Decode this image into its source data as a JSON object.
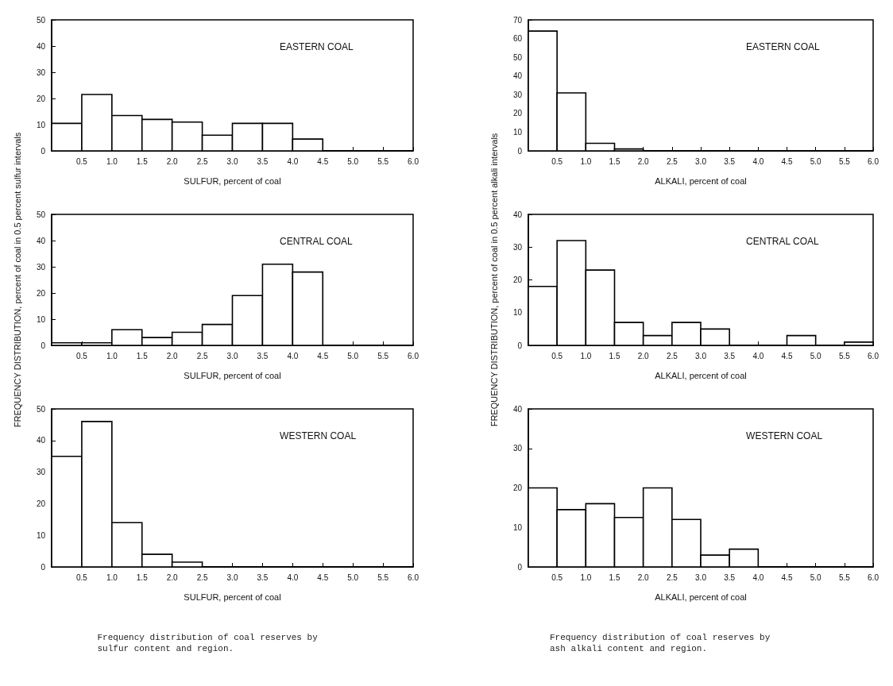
{
  "chart_data": [
    {
      "type": "histogram",
      "title": "EASTERN COAL",
      "xlabel": "SULFUR, percent of coal",
      "bins": [
        0,
        0.5,
        1,
        1.5,
        2,
        2.5,
        3,
        3.5,
        4,
        4.5,
        5,
        5.5,
        6
      ],
      "values": [
        10.5,
        21.5,
        13.5,
        12,
        11,
        6,
        10.5,
        10.5,
        4.5,
        0,
        0,
        0
      ],
      "color": "#000000",
      "xlim": [
        0,
        6
      ],
      "xticks": [
        {
          "value": 0,
          "label": null
        },
        {
          "value": 0.5,
          "label": "0.5"
        },
        {
          "value": 1,
          "label": "1.0"
        },
        {
          "value": 1.5,
          "label": "1.5"
        },
        {
          "value": 2,
          "label": "2.0"
        },
        {
          "value": 2.5,
          "label": "2.5"
        },
        {
          "value": 3,
          "label": "3.0"
        },
        {
          "value": 3.5,
          "label": "3.5"
        },
        {
          "value": 4,
          "label": "4.0"
        },
        {
          "value": 4.5,
          "label": "4.5"
        },
        {
          "value": 5,
          "label": "5.0"
        },
        {
          "value": 5.5,
          "label": "5.5"
        },
        {
          "value": 6,
          "label": "6.0"
        }
      ],
      "ylim": [
        0,
        50
      ],
      "yticks": [
        0,
        10,
        20,
        30,
        40,
        50
      ]
    },
    {
      "type": "histogram",
      "title": "CENTRAL COAL",
      "xlabel": "SULFUR, percent of coal",
      "ylabel": "FREQUENCY DISTRIBUTION, percent of coal in 0.5 percent sulfur intervals",
      "bins": [
        0,
        0.5,
        1,
        1.5,
        2,
        2.5,
        3,
        3.5,
        4,
        4.5,
        5,
        5.5,
        6
      ],
      "values": [
        1,
        1,
        6,
        3,
        5,
        8,
        19,
        31,
        28,
        0,
        0,
        0
      ],
      "color": "#000000",
      "xlim": [
        0,
        6
      ],
      "xticks": [
        {
          "value": 0,
          "label": null
        },
        {
          "value": 0.5,
          "label": "0.5"
        },
        {
          "value": 1,
          "label": "1.0"
        },
        {
          "value": 1.5,
          "label": "1.5"
        },
        {
          "value": 2,
          "label": "2.0"
        },
        {
          "value": 2.5,
          "label": "2.5"
        },
        {
          "value": 3,
          "label": "3.0"
        },
        {
          "value": 3.5,
          "label": "3.5"
        },
        {
          "value": 4,
          "label": "4.0"
        },
        {
          "value": 4.5,
          "label": "4.5"
        },
        {
          "value": 5,
          "label": "5.0"
        },
        {
          "value": 5.5,
          "label": "5.5"
        },
        {
          "value": 6,
          "label": "6.0"
        }
      ],
      "ylim": [
        0,
        50
      ],
      "yticks": [
        0,
        10,
        20,
        30,
        40,
        50
      ]
    },
    {
      "type": "histogram",
      "title": "WESTERN COAL",
      "xlabel": "SULFUR, percent of coal",
      "bins": [
        0,
        0.5,
        1,
        1.5,
        2,
        2.5,
        3,
        3.5,
        4,
        4.5,
        5,
        5.5,
        6
      ],
      "values": [
        35,
        46,
        14,
        4,
        1.5,
        0,
        0,
        0,
        0,
        0,
        0,
        0
      ],
      "color": "#000000",
      "xlim": [
        0,
        6
      ],
      "xticks": [
        {
          "value": 0,
          "label": null
        },
        {
          "value": 0.5,
          "label": "0.5"
        },
        {
          "value": 1,
          "label": "1.0"
        },
        {
          "value": 1.5,
          "label": "1.5"
        },
        {
          "value": 2,
          "label": "2.0"
        },
        {
          "value": 2.5,
          "label": "2.5"
        },
        {
          "value": 3,
          "label": "3.0"
        },
        {
          "value": 3.5,
          "label": "3.5"
        },
        {
          "value": 4,
          "label": "4.0"
        },
        {
          "value": 4.5,
          "label": "4.5"
        },
        {
          "value": 5,
          "label": "5.0"
        },
        {
          "value": 5.5,
          "label": "5.5"
        },
        {
          "value": 6,
          "label": "6.0"
        }
      ],
      "ylim": [
        0,
        50
      ],
      "yticks": [
        0,
        10,
        20,
        30,
        40,
        50
      ],
      "annotations": [
        "Frequency distribution of coal reserves by sulfur content and region."
      ]
    },
    {
      "type": "histogram",
      "title": "EASTERN COAL",
      "xlabel": "ALKALI, percent of coal",
      "bins": [
        0,
        0.5,
        1,
        1.5,
        2,
        2.5,
        3,
        3.5,
        4,
        4.5,
        5,
        5.5,
        6
      ],
      "values": [
        64,
        31,
        4,
        1,
        0,
        0,
        0,
        0,
        0,
        0,
        0,
        0
      ],
      "color": "#000000",
      "xlim": [
        0,
        6
      ],
      "xticks": [
        {
          "value": 0,
          "label": null
        },
        {
          "value": 0.5,
          "label": "0.5"
        },
        {
          "value": 1,
          "label": "1.0"
        },
        {
          "value": 1.5,
          "label": "1.5"
        },
        {
          "value": 2,
          "label": "2.0"
        },
        {
          "value": 2.5,
          "label": "2.5"
        },
        {
          "value": 3,
          "label": "3.0"
        },
        {
          "value": 3.5,
          "label": "3.5"
        },
        {
          "value": 4,
          "label": "4.0"
        },
        {
          "value": 4.5,
          "label": "4.5"
        },
        {
          "value": 5,
          "label": "5.0"
        },
        {
          "value": 5.5,
          "label": "5.5"
        },
        {
          "value": 6,
          "label": "6.0"
        }
      ],
      "ylim": [
        0,
        70
      ],
      "yticks": [
        0,
        10,
        20,
        30,
        40,
        50,
        60,
        70
      ]
    },
    {
      "type": "histogram",
      "title": "CENTRAL COAL",
      "xlabel": "ALKALI, percent of coal",
      "ylabel": "FREQUENCY DISTRIBUTION, percent of coal in 0.5 percent alkali intervals",
      "bins": [
        0,
        0.5,
        1,
        1.5,
        2,
        2.5,
        3,
        3.5,
        4,
        4.5,
        5,
        5.5,
        6
      ],
      "values": [
        18,
        32,
        23,
        7,
        3,
        7,
        5,
        0,
        0,
        3,
        0,
        1
      ],
      "color": "#000000",
      "xlim": [
        0,
        6
      ],
      "xticks": [
        {
          "value": 0,
          "label": null
        },
        {
          "value": 0.5,
          "label": "0.5"
        },
        {
          "value": 1,
          "label": "1.0"
        },
        {
          "value": 1.5,
          "label": "1.5"
        },
        {
          "value": 2,
          "label": "2.0"
        },
        {
          "value": 2.5,
          "label": "2.5"
        },
        {
          "value": 3,
          "label": "3.0"
        },
        {
          "value": 3.5,
          "label": "3.5"
        },
        {
          "value": 4,
          "label": "4.0"
        },
        {
          "value": 4.5,
          "label": "4.5"
        },
        {
          "value": 5,
          "label": "5.0"
        },
        {
          "value": 5.5,
          "label": "5.5"
        },
        {
          "value": 6,
          "label": "6.0"
        }
      ],
      "ylim": [
        0,
        40
      ],
      "yticks": [
        0,
        10,
        20,
        30,
        40
      ]
    },
    {
      "type": "histogram",
      "title": "WESTERN COAL",
      "xlabel": "ALKALI, percent of coal",
      "bins": [
        0,
        0.5,
        1,
        1.5,
        2,
        2.5,
        3,
        3.5,
        4,
        4.5,
        5,
        5.5,
        6
      ],
      "values": [
        20,
        14.5,
        16,
        12.5,
        20,
        12,
        3,
        4.5,
        0,
        0,
        0,
        0
      ],
      "color": "#000000",
      "xlim": [
        0,
        6
      ],
      "xticks": [
        {
          "value": 0,
          "label": null
        },
        {
          "value": 0.5,
          "label": "0.5"
        },
        {
          "value": 1,
          "label": "1.0"
        },
        {
          "value": 1.5,
          "label": "1.5"
        },
        {
          "value": 2,
          "label": "2.0"
        },
        {
          "value": 2.5,
          "label": "2.5"
        },
        {
          "value": 3,
          "label": "3.0"
        },
        {
          "value": 3.5,
          "label": "3.5"
        },
        {
          "value": 4,
          "label": "4.0"
        },
        {
          "value": 4.5,
          "label": "4.5"
        },
        {
          "value": 5,
          "label": "5.0"
        },
        {
          "value": 5.5,
          "label": "5.5"
        },
        {
          "value": 6,
          "label": "6.0"
        }
      ],
      "ylim": [
        0,
        40
      ],
      "yticks": [
        0,
        10,
        20,
        30,
        40
      ],
      "annotations": [
        "Frequency distribution of coal reserves by ash alkali content and region."
      ]
    }
  ]
}
